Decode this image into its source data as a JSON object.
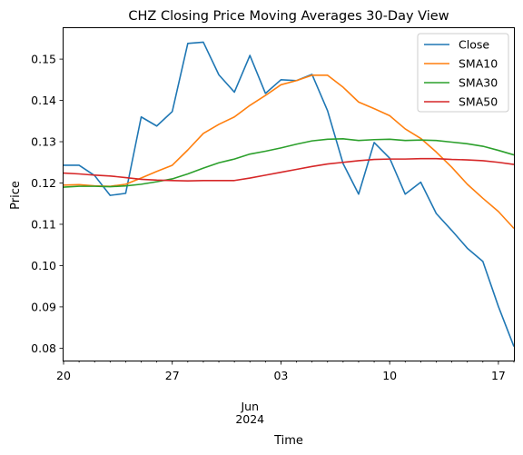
{
  "chart_data": {
    "type": "line",
    "title": "CHZ Closing Price Moving Averages 30-Day View",
    "xlabel": "Time",
    "ylabel": "Price",
    "x_start": "2024-05-20",
    "x_end": "2024-06-18",
    "xlim": [
      "2024-05-20",
      "2024-06-18"
    ],
    "ylim": [
      0.077,
      0.1575
    ],
    "x_ticks": [
      {
        "date": "2024-05-20",
        "label": "20"
      },
      {
        "date": "2024-05-27",
        "label": "27"
      },
      {
        "date": "2024-06-03",
        "label": "03"
      },
      {
        "date": "2024-06-10",
        "label": "10"
      },
      {
        "date": "2024-06-17",
        "label": "17"
      }
    ],
    "x_month_label": {
      "date": "2024-06-01",
      "lines": [
        "Jun",
        "2024"
      ]
    },
    "y_ticks": [
      {
        "value": 0.08,
        "label": "0.08"
      },
      {
        "value": 0.09,
        "label": "0.09"
      },
      {
        "value": 0.1,
        "label": "0.10"
      },
      {
        "value": 0.11,
        "label": "0.11"
      },
      {
        "value": 0.12,
        "label": "0.12"
      },
      {
        "value": 0.13,
        "label": "0.13"
      },
      {
        "value": 0.14,
        "label": "0.14"
      },
      {
        "value": 0.15,
        "label": "0.15"
      }
    ],
    "grid": false,
    "legend_position": "top-right",
    "x": [
      "2024-05-20",
      "2024-05-21",
      "2024-05-22",
      "2024-05-23",
      "2024-05-24",
      "2024-05-25",
      "2024-05-26",
      "2024-05-27",
      "2024-05-28",
      "2024-05-29",
      "2024-05-30",
      "2024-05-31",
      "2024-06-01",
      "2024-06-02",
      "2024-06-03",
      "2024-06-04",
      "2024-06-05",
      "2024-06-06",
      "2024-06-07",
      "2024-06-08",
      "2024-06-09",
      "2024-06-10",
      "2024-06-11",
      "2024-06-12",
      "2024-06-13",
      "2024-06-14",
      "2024-06-15",
      "2024-06-16",
      "2024-06-17",
      "2024-06-18"
    ],
    "series": [
      {
        "name": "Close",
        "color": "#1f77b4",
        "values": [
          0.1243,
          0.1243,
          0.1218,
          0.117,
          0.1175,
          0.136,
          0.1338,
          0.1373,
          0.1538,
          0.1541,
          0.1462,
          0.142,
          0.1509,
          0.1417,
          0.145,
          0.1448,
          0.1463,
          0.1375,
          0.1247,
          0.1173,
          0.1298,
          0.126,
          0.1173,
          0.1202,
          0.1126,
          0.1085,
          0.1042,
          0.101,
          0.0901,
          0.0804
        ]
      },
      {
        "name": "SMA10",
        "color": "#ff7f0e",
        "values": [
          0.1195,
          0.1196,
          0.1193,
          0.1192,
          0.1197,
          0.1212,
          0.1228,
          0.1243,
          0.128,
          0.132,
          0.1342,
          0.136,
          0.1388,
          0.1412,
          0.1438,
          0.1448,
          0.1461,
          0.1461,
          0.1432,
          0.1396,
          0.138,
          0.1363,
          0.1331,
          0.1308,
          0.1275,
          0.1238,
          0.1197,
          0.1163,
          0.1131,
          0.109
        ]
      },
      {
        "name": "SMA30",
        "color": "#2ca02c",
        "values": [
          0.119,
          0.1192,
          0.1192,
          0.1191,
          0.1193,
          0.1197,
          0.1203,
          0.121,
          0.1222,
          0.1236,
          0.1249,
          0.1258,
          0.127,
          0.1277,
          0.1285,
          0.1294,
          0.1302,
          0.1306,
          0.1307,
          0.1303,
          0.1305,
          0.1306,
          0.1303,
          0.1304,
          0.1303,
          0.1299,
          0.1295,
          0.1289,
          0.1279,
          0.1268
        ]
      },
      {
        "name": "SMA50",
        "color": "#d62728",
        "values": [
          0.1224,
          0.1222,
          0.1219,
          0.1217,
          0.1213,
          0.1209,
          0.1207,
          0.1206,
          0.1205,
          0.1206,
          0.1206,
          0.1206,
          0.1212,
          0.1219,
          0.1226,
          0.1233,
          0.124,
          0.1246,
          0.125,
          0.1254,
          0.1257,
          0.1258,
          0.1258,
          0.1259,
          0.1259,
          0.1257,
          0.1256,
          0.1254,
          0.125,
          0.1245
        ]
      }
    ]
  }
}
